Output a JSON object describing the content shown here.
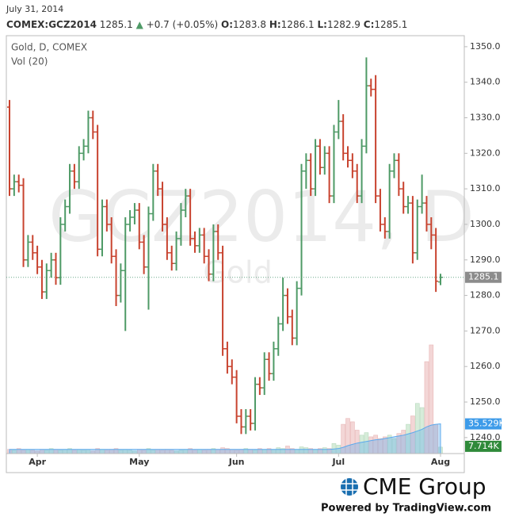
{
  "chart_data": {
    "type": "ohlc",
    "date": "July 31, 2014",
    "quote": {
      "symbol": "COMEX:GCZ2014",
      "last": 1285.1,
      "change": "+0.7 (+0.05%)",
      "items": [
        {
          "label": "O:",
          "value": 1283.8
        },
        {
          "label": "H:",
          "value": 1286.1
        },
        {
          "label": "L:",
          "value": 1282.9
        },
        {
          "label": "C:",
          "value": 1285.1
        }
      ]
    },
    "legend": [
      "Gold, D, COMEX",
      "Vol (20)"
    ],
    "watermark": {
      "symbol": "GCZ2014, D",
      "name": "Gold"
    },
    "up_color": "#4e9a66",
    "down_color": "#c8432f",
    "volume_up_color": "#d6ecd9",
    "volume_down_color": "#f3d6d6",
    "vol_ma_color": "#5aa9ee",
    "open": [
      1333,
      1310,
      1312,
      1311,
      1290,
      1295,
      1292,
      1288,
      1281,
      1287,
      1290,
      1285,
      1300,
      1305,
      1315,
      1312,
      1320,
      1322,
      1330,
      1326,
      1293,
      1305,
      1300,
      1291,
      1280,
      1287,
      1300,
      1302,
      1304,
      1295,
      1288,
      1303,
      1315,
      1310,
      1300,
      1292,
      1289,
      1296,
      1304,
      1308,
      1296,
      1294,
      1297,
      1291,
      1286,
      1298,
      1292,
      1265,
      1260,
      1257,
      1246,
      1243,
      1246,
      1244,
      1255,
      1254,
      1262,
      1258,
      1265,
      1272,
      1280,
      1274,
      1268,
      1282,
      1315,
      1318,
      1310,
      1322,
      1316,
      1320,
      1308,
      1326,
      1329,
      1320,
      1318,
      1315,
      1308,
      1322,
      1339,
      1338,
      1308,
      1300,
      1298,
      1315,
      1318,
      1310,
      1305,
      1306,
      1292,
      1305,
      1306,
      1300,
      1297,
      1283.8
    ],
    "high": [
      1335,
      1314,
      1314,
      1313,
      1297,
      1297,
      1294,
      1290,
      1289,
      1292,
      1292,
      1302,
      1307,
      1317,
      1317,
      1322,
      1324,
      1332,
      1332,
      1328,
      1307,
      1307,
      1302,
      1293,
      1289,
      1302,
      1304,
      1306,
      1306,
      1297,
      1305,
      1317,
      1317,
      1312,
      1302,
      1294,
      1298,
      1306,
      1310,
      1310,
      1298,
      1299,
      1299,
      1293,
      1300,
      1300,
      1294,
      1267,
      1262,
      1259,
      1248,
      1248,
      1248,
      1257,
      1257,
      1264,
      1264,
      1267,
      1274,
      1285,
      1282,
      1276,
      1284,
      1317,
      1320,
      1320,
      1324,
      1324,
      1322,
      1322,
      1328,
      1335,
      1331,
      1322,
      1320,
      1317,
      1324,
      1347,
      1341,
      1342,
      1310,
      1302,
      1317,
      1320,
      1320,
      1312,
      1308,
      1308,
      1307,
      1314,
      1308,
      1302,
      1299,
      1286.1
    ],
    "low": [
      1308,
      1308,
      1309,
      1288,
      1288,
      1290,
      1286,
      1279,
      1279,
      1285,
      1283,
      1283,
      1298,
      1303,
      1310,
      1310,
      1318,
      1320,
      1324,
      1291,
      1291,
      1298,
      1289,
      1277,
      1278,
      1270,
      1298,
      1300,
      1293,
      1286,
      1276,
      1301,
      1308,
      1298,
      1290,
      1287,
      1287,
      1294,
      1302,
      1294,
      1292,
      1292,
      1289,
      1284,
      1284,
      1290,
      1263,
      1258,
      1255,
      1244,
      1241,
      1241,
      1242,
      1242,
      1252,
      1252,
      1256,
      1256,
      1263,
      1270,
      1272,
      1266,
      1266,
      1280,
      1310,
      1308,
      1308,
      1314,
      1314,
      1306,
      1306,
      1324,
      1318,
      1316,
      1313,
      1306,
      1306,
      1320,
      1336,
      1306,
      1298,
      1296,
      1296,
      1313,
      1308,
      1303,
      1303,
      1289,
      1290,
      1303,
      1298,
      1293,
      1281,
      1282.9
    ],
    "close": [
      1310,
      1312,
      1311,
      1290,
      1295,
      1292,
      1288,
      1281,
      1287,
      1290,
      1285,
      1300,
      1305,
      1315,
      1312,
      1320,
      1322,
      1330,
      1326,
      1293,
      1305,
      1300,
      1291,
      1280,
      1287,
      1300,
      1302,
      1304,
      1295,
      1288,
      1303,
      1315,
      1310,
      1300,
      1292,
      1289,
      1296,
      1304,
      1308,
      1296,
      1294,
      1297,
      1291,
      1286,
      1298,
      1292,
      1265,
      1260,
      1257,
      1246,
      1243,
      1246,
      1244,
      1255,
      1254,
      1262,
      1258,
      1265,
      1272,
      1280,
      1274,
      1268,
      1282,
      1315,
      1318,
      1310,
      1322,
      1316,
      1320,
      1308,
      1326,
      1329,
      1320,
      1318,
      1315,
      1308,
      1322,
      1339,
      1338,
      1308,
      1300,
      1298,
      1315,
      1318,
      1310,
      1305,
      1306,
      1292,
      1305,
      1306,
      1300,
      1297,
      1284,
      1285.1
    ],
    "volume": [
      5,
      4,
      6,
      4,
      5,
      4,
      3,
      5,
      4,
      6,
      5,
      4,
      5,
      6,
      4,
      5,
      4,
      5,
      3,
      6,
      5,
      4,
      5,
      6,
      4,
      5,
      4,
      3,
      5,
      4,
      6,
      4,
      5,
      4,
      5,
      4,
      3,
      4,
      5,
      6,
      4,
      5,
      4,
      5,
      6,
      5,
      7,
      6,
      5,
      4,
      5,
      6,
      5,
      4,
      6,
      5,
      6,
      5,
      7,
      6,
      9,
      6,
      5,
      8,
      7,
      6,
      5,
      6,
      7,
      6,
      12,
      10,
      35,
      42,
      38,
      28,
      22,
      25,
      20,
      22,
      18,
      20,
      22,
      18,
      24,
      28,
      35,
      45,
      60,
      55,
      110,
      130,
      35,
      7.714
    ],
    "vol_ma": [
      5,
      5,
      5,
      5,
      5,
      5,
      5,
      5,
      5,
      5,
      5,
      5,
      5,
      5,
      5,
      5,
      5,
      5,
      5,
      5,
      5,
      5,
      5,
      5,
      5,
      5,
      5,
      5,
      5,
      5,
      5,
      5,
      5,
      5,
      5,
      5,
      5,
      5,
      5,
      5,
      5,
      5,
      5,
      5,
      5,
      5,
      5,
      5,
      5,
      5,
      5,
      5,
      5,
      5,
      5,
      5,
      5,
      5,
      5,
      5,
      5,
      5,
      5,
      5,
      5,
      5,
      5,
      5,
      5,
      5,
      5.5,
      6,
      7.5,
      9.5,
      11,
      12.5,
      13.5,
      14.5,
      15.5,
      16.5,
      17,
      18,
      19,
      20,
      21,
      22,
      23.5,
      25,
      27,
      29,
      32,
      34,
      35,
      35.529
    ],
    "ylim": [
      1235.5,
      1353.1
    ],
    "yticks": [
      {
        "value": 1240,
        "label": "1240.0"
      },
      {
        "value": 1250,
        "label": "1250.0"
      },
      {
        "value": 1260,
        "label": "1260.0"
      },
      {
        "value": 1270,
        "label": "1270.0"
      },
      {
        "value": 1280,
        "label": "1280.0"
      },
      {
        "value": 1290,
        "label": "1290.0"
      },
      {
        "value": 1300,
        "label": "1300.0"
      },
      {
        "value": 1310,
        "label": "1310.0"
      },
      {
        "value": 1320,
        "label": "1320.0"
      },
      {
        "value": 1330,
        "label": "1330.0"
      },
      {
        "value": 1340,
        "label": "1340.0"
      },
      {
        "value": 1350,
        "label": "1350.0"
      }
    ],
    "vlim": [
      0,
      500
    ],
    "x_labels": [
      {
        "value": 6,
        "label": "Apr"
      },
      {
        "value": 28,
        "label": "May"
      },
      {
        "value": 49,
        "label": "Jun"
      },
      {
        "value": 71,
        "label": "Jul"
      },
      {
        "value": 93,
        "label": "Aug"
      }
    ],
    "last_price": 1285.1,
    "vol_ma_last": {
      "value": 35.529,
      "label": "35.529K"
    },
    "volume_last": {
      "value": 7.714,
      "label": "7.714K"
    },
    "footer": {
      "brand": "CME Group",
      "powered": "Powered by TradingView.com"
    }
  }
}
